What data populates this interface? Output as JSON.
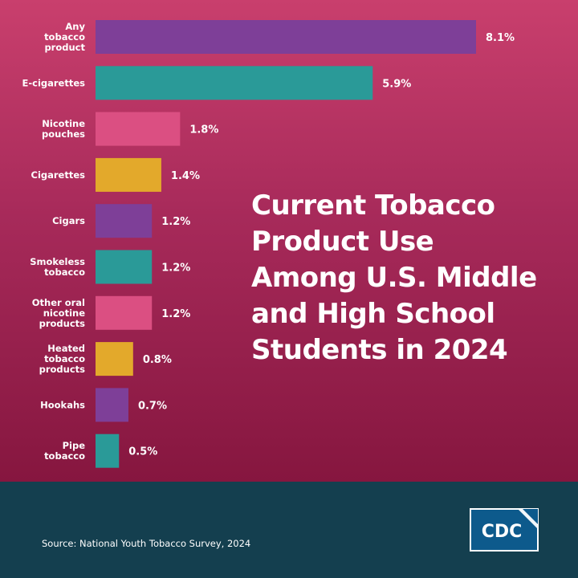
{
  "chart_data": {
    "type": "bar",
    "orientation": "horizontal",
    "title": "Current Tobacco Product Use Among U.S. Middle and High School Students in 2024",
    "categories": [
      [
        "Any",
        "tobacco",
        "product"
      ],
      [
        "E-cigarettes"
      ],
      [
        "Nicotine",
        "pouches"
      ],
      [
        "Cigarettes"
      ],
      [
        "Cigars"
      ],
      [
        "Smokeless",
        "tobacco"
      ],
      [
        "Other oral",
        "nicotine",
        "products"
      ],
      [
        "Heated",
        "tobacco",
        "products"
      ],
      [
        "Hookahs"
      ],
      [
        "Pipe",
        "tobacco"
      ]
    ],
    "values": [
      8.1,
      5.9,
      1.8,
      1.4,
      1.2,
      1.2,
      1.2,
      0.8,
      0.7,
      0.5
    ],
    "value_labels": [
      "8.1%",
      "5.9%",
      "1.8%",
      "1.4%",
      "1.2%",
      "1.2%",
      "1.2%",
      "0.8%",
      "0.7%",
      "0.5%"
    ],
    "bar_colors": [
      "#7e3f98",
      "#2a9a98",
      "#db4f82",
      "#e3a92b",
      "#7e3f98",
      "#2a9a98",
      "#db4f82",
      "#e3a92b",
      "#7e3f98",
      "#2a9a98"
    ],
    "xlim": [
      0,
      8.1
    ],
    "grid": false,
    "legend": "none"
  },
  "title_lines": [
    "Current Tobacco",
    "Product Use",
    "Among U.S. Middle",
    "and High School",
    "Students in 2024"
  ],
  "footer": {
    "source": "Source: National Youth Tobacco Survey, 2024",
    "logo_text": "CDC",
    "background": "#143f4f"
  }
}
